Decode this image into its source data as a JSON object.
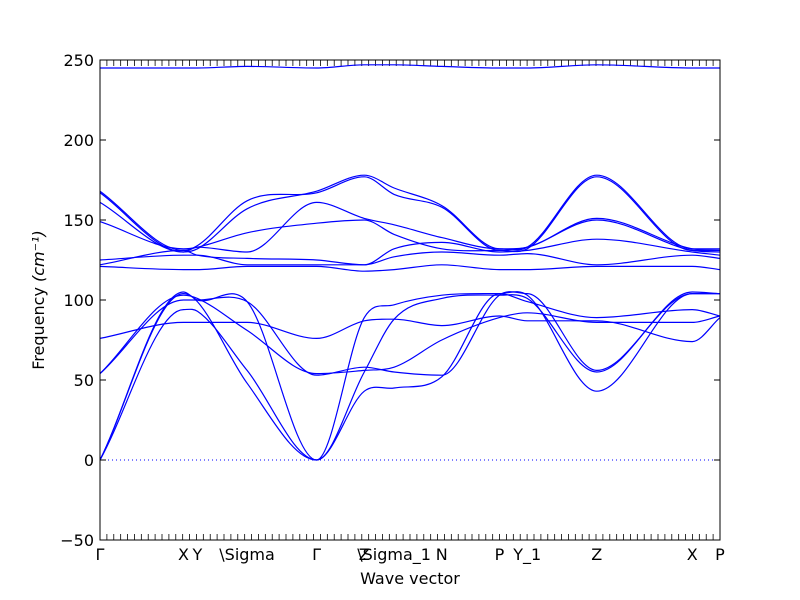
{
  "chart_data": {
    "type": "line",
    "title": "",
    "xlabel": "Wave vector",
    "ylabel": "Frequency",
    "ylabel_unit": "(cm⁻¹)",
    "ylim": [
      -50,
      250
    ],
    "yticks": [
      -50,
      0,
      50,
      100,
      150,
      200,
      250
    ],
    "xlim": [
      0,
      3.12
    ],
    "grid": false,
    "legend": "none",
    "line_color": "#0000ff",
    "zero_line": {
      "y": 0,
      "style": "dotted",
      "color": "#0000ff"
    },
    "high_points": [
      {
        "label": "Γ",
        "x": 0.0
      },
      {
        "label": "X",
        "x": 0.42
      },
      {
        "label": "Y",
        "x": 0.49
      },
      {
        "label": "\\Sigma",
        "x": 0.74
      },
      {
        "label": "Γ",
        "x": 1.09
      },
      {
        "label": "Z",
        "x": 1.33
      },
      {
        "label": "\\Sigma_1",
        "x": 1.48
      },
      {
        "label": "N",
        "x": 1.72
      },
      {
        "label": "P",
        "x": 2.01
      },
      {
        "label": "Y_1",
        "x": 2.15
      },
      {
        "label": "Z",
        "x": 2.5
      },
      {
        "label": "X",
        "x": 2.98
      },
      {
        "label": "P",
        "x": 3.12
      }
    ],
    "series": [
      {
        "x": [
          0,
          0.42,
          0.49,
          0.74,
          1.09,
          1.33,
          1.48,
          1.72,
          2.01,
          2.15,
          2.5,
          2.98,
          3.12
        ],
        "y": [
          0,
          105,
          100,
          99,
          0,
          43,
          45,
          52,
          104,
          103,
          43,
          104,
          104
        ]
      },
      {
        "x": [
          0,
          0.42,
          0.49,
          0.74,
          1.09,
          1.33,
          1.48,
          1.72,
          2.01,
          2.15,
          2.5,
          2.98,
          3.12
        ],
        "y": [
          0,
          104,
          99,
          48,
          0,
          55,
          88,
          101,
          103,
          101,
          55,
          105,
          104
        ]
      },
      {
        "x": [
          0,
          0.42,
          0.49,
          0.74,
          1.09,
          1.33,
          1.48,
          1.72,
          2.01,
          2.15,
          2.5,
          2.98,
          3.12
        ],
        "y": [
          0,
          94,
          93,
          56,
          0,
          89,
          97,
          103,
          104,
          99,
          89,
          94,
          90
        ]
      },
      {
        "x": [
          0,
          0.42,
          0.49,
          0.74,
          1.09,
          1.33,
          1.48,
          1.72,
          2.01,
          2.15,
          2.5,
          2.98,
          3.12
        ],
        "y": [
          54,
          103,
          101,
          81,
          54,
          56,
          58,
          75,
          89,
          92,
          86,
          86,
          90
        ]
      },
      {
        "x": [
          0,
          0.42,
          0.49,
          0.74,
          1.09,
          1.33,
          1.48,
          1.72,
          2.01,
          2.15,
          2.5,
          2.98,
          3.12
        ],
        "y": [
          76,
          86,
          86,
          86,
          76,
          87,
          88,
          84,
          90,
          87,
          87,
          74,
          89
        ]
      },
      {
        "x": [
          0,
          0.42,
          0.49,
          0.74,
          1.09,
          1.33,
          1.48,
          1.72,
          2.01,
          2.15,
          2.5,
          2.98,
          3.12
        ],
        "y": [
          54,
          100,
          100,
          99,
          53,
          58,
          55,
          53,
          103,
          104,
          56,
          104,
          104
        ]
      },
      {
        "x": [
          0,
          0.42,
          0.49,
          0.74,
          1.09,
          1.33,
          1.48,
          1.72,
          2.01,
          2.15,
          2.5,
          2.98,
          3.12
        ],
        "y": [
          121,
          119,
          119,
          121,
          121,
          118,
          119,
          122,
          119,
          119,
          121,
          121,
          119
        ]
      },
      {
        "x": [
          0,
          0.42,
          0.49,
          0.74,
          1.09,
          1.33,
          1.48,
          1.72,
          2.01,
          2.15,
          2.5,
          2.98,
          3.12
        ],
        "y": [
          125,
          128,
          128,
          122,
          122,
          122,
          127,
          130,
          128,
          129,
          122,
          128,
          126
        ]
      },
      {
        "x": [
          0,
          0.42,
          0.49,
          0.74,
          1.09,
          1.33,
          1.48,
          1.72,
          2.01,
          2.15,
          2.5,
          2.98,
          3.12
        ],
        "y": [
          122,
          131,
          128,
          126,
          125,
          122,
          132,
          136,
          130,
          131,
          138,
          130,
          128
        ]
      },
      {
        "x": [
          0,
          0.42,
          0.49,
          0.74,
          1.09,
          1.33,
          1.48,
          1.72,
          2.01,
          2.15,
          2.5,
          2.98,
          3.12
        ],
        "y": [
          149,
          132,
          133,
          142,
          148,
          150,
          141,
          132,
          131,
          133,
          150,
          131,
          130
        ]
      },
      {
        "x": [
          0,
          0.42,
          0.49,
          0.74,
          1.09,
          1.33,
          1.48,
          1.72,
          2.01,
          2.15,
          2.5,
          2.98,
          3.12
        ],
        "y": [
          161,
          130,
          133,
          130,
          161,
          151,
          147,
          139,
          132,
          133,
          151,
          132,
          131
        ]
      },
      {
        "x": [
          0,
          0.42,
          0.49,
          0.74,
          1.09,
          1.33,
          1.48,
          1.72,
          2.01,
          2.15,
          2.5,
          2.98,
          3.12
        ],
        "y": [
          167,
          130,
          132,
          157,
          168,
          178,
          170,
          159,
          132,
          133,
          178,
          132,
          132
        ]
      },
      {
        "x": [
          0,
          0.42,
          0.49,
          0.74,
          1.09,
          1.33,
          1.48,
          1.72,
          2.01,
          2.15,
          2.5,
          2.98,
          3.12
        ],
        "y": [
          168,
          131,
          134,
          162,
          167,
          177,
          166,
          158,
          131,
          132,
          177,
          131,
          131
        ]
      },
      {
        "x": [
          0,
          0.42,
          0.49,
          0.74,
          1.09,
          1.33,
          1.48,
          1.72,
          2.01,
          2.15,
          2.5,
          2.98,
          3.12
        ],
        "y": [
          245,
          245,
          245,
          246,
          245,
          247,
          247,
          246,
          245,
          245,
          247,
          245,
          245
        ]
      }
    ]
  }
}
